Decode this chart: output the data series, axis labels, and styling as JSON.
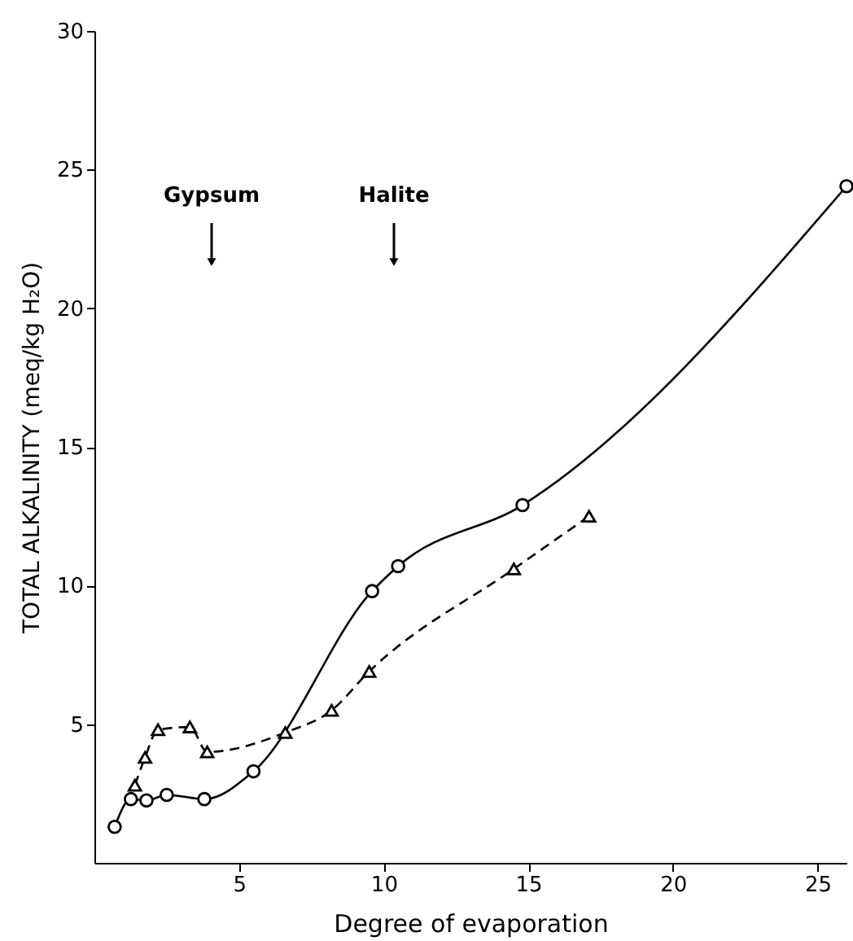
{
  "chart_data": {
    "type": "line",
    "xlabel": "Degree of evaporation",
    "ylabel": "TOTAL ALKALINITY (meq/kg H₂O)",
    "xlim": [
      0,
      26
    ],
    "ylim": [
      0,
      30
    ],
    "xticks": [
      5,
      10,
      15,
      20,
      25
    ],
    "yticks": [
      5,
      10,
      15,
      20,
      25,
      30
    ],
    "grid": false,
    "series": [
      {
        "color": "#000000",
        "marker": "circle",
        "line_style": "solid",
        "x": [
          0.7,
          1.26,
          1.8,
          2.5,
          3.8,
          5.5,
          9.6,
          10.5,
          14.8,
          26.0
        ],
        "values": [
          1.3,
          2.3,
          2.25,
          2.45,
          2.3,
          3.3,
          9.8,
          10.7,
          12.9,
          24.4
        ]
      },
      {
        "color": "#000000",
        "marker": "triangle",
        "line_style": "dashed",
        "x": [
          1.4,
          1.75,
          2.2,
          3.3,
          3.9,
          6.6,
          8.2,
          9.5,
          14.5,
          17.1
        ],
        "values": [
          2.8,
          3.8,
          4.8,
          4.9,
          4.0,
          4.7,
          5.5,
          6.9,
          10.6,
          12.5
        ]
      }
    ],
    "annotations": [
      "Gypsum",
      "Halite"
    ]
  }
}
